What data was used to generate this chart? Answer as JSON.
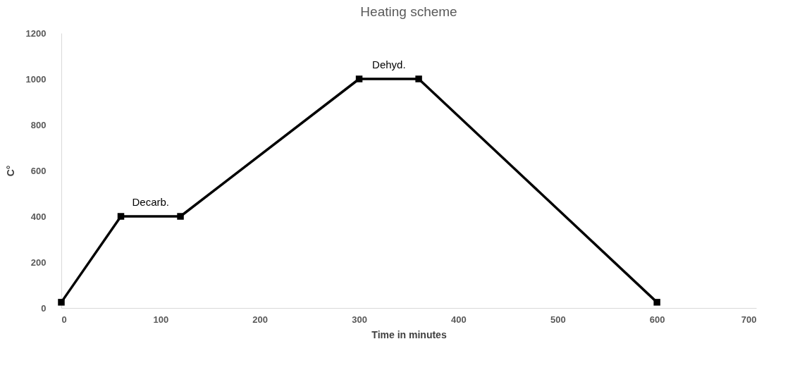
{
  "chart_data": {
    "type": "line",
    "title": "Heating scheme",
    "xlabel": "Time in minutes",
    "ylabel": "C°",
    "x": [
      0,
      60,
      120,
      300,
      360,
      600
    ],
    "series": [
      {
        "color": "#000000",
        "values": [
          25,
          400,
          400,
          1000,
          1000,
          25
        ]
      }
    ],
    "xlim": [
      0,
      700
    ],
    "xticks": [
      0,
      100,
      200,
      300,
      400,
      500,
      600,
      700
    ],
    "ylim": [
      0,
      1200
    ],
    "yticks": [
      0,
      200,
      400,
      600,
      800,
      1000,
      1200
    ],
    "marker": "square",
    "line_style": "solid",
    "grid": false,
    "annotations": [
      {
        "text": "Decarb.",
        "x": 90,
        "y": 400
      },
      {
        "text": "Dehyd.",
        "x": 330,
        "y": 1000
      }
    ]
  }
}
